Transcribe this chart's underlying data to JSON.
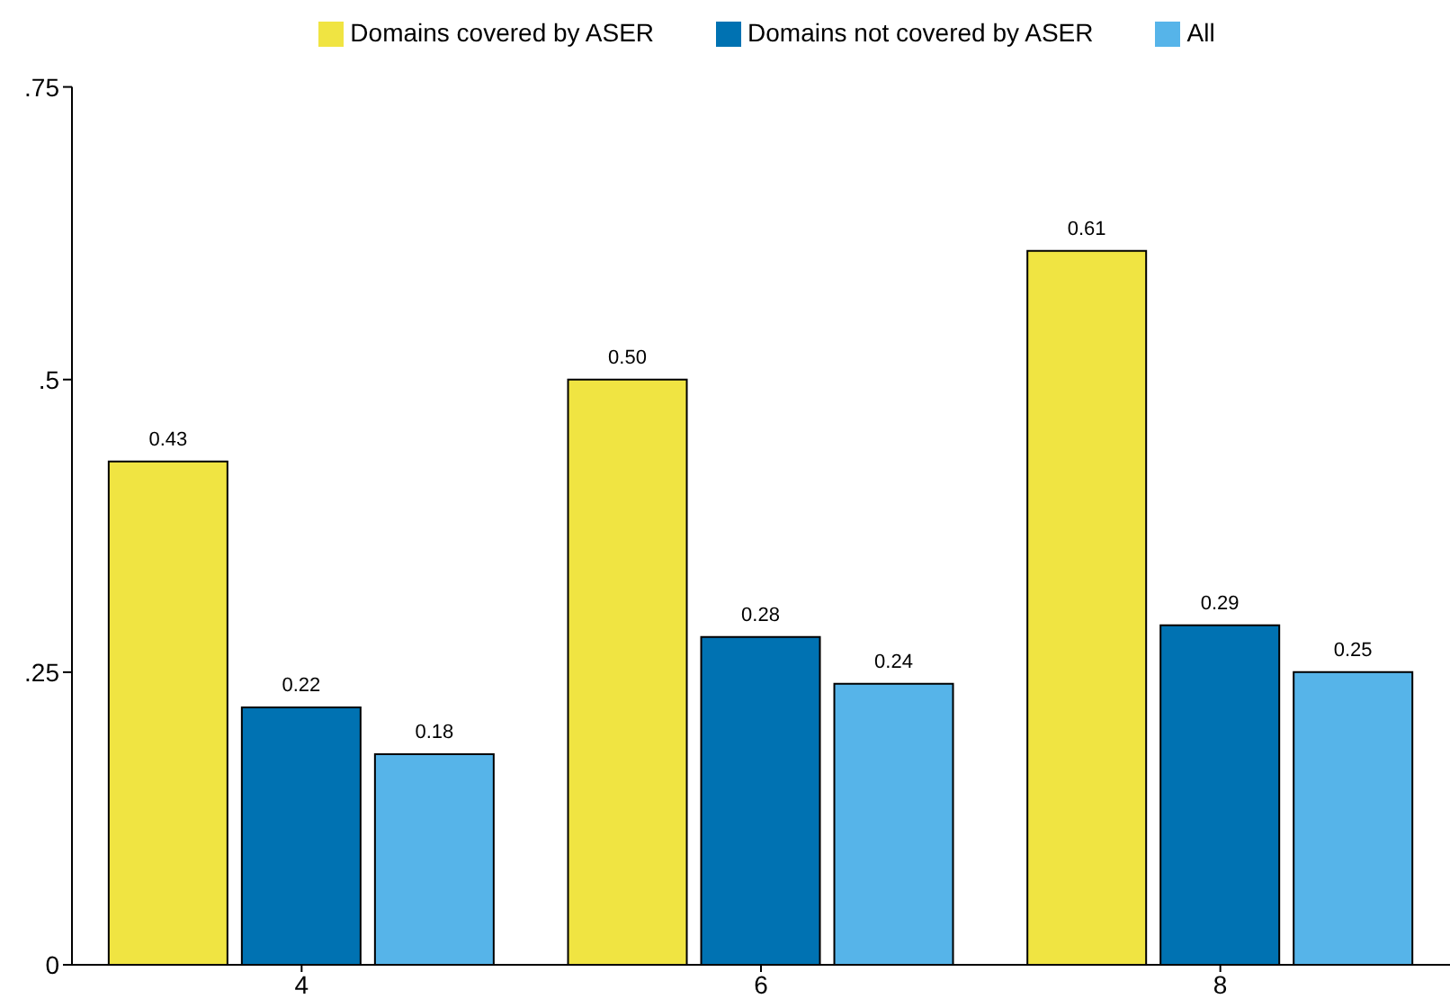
{
  "chart_data": {
    "type": "bar",
    "categories": [
      "4",
      "6",
      "8"
    ],
    "series": [
      {
        "name": "Domains covered by ASER",
        "color": "#f0e442",
        "values": [
          0.43,
          0.5,
          0.61
        ],
        "value_labels": [
          "0.43",
          "0.50",
          "0.61"
        ]
      },
      {
        "name": "Domains not covered by ASER",
        "color": "#0072b2",
        "values": [
          0.22,
          0.28,
          0.29
        ],
        "value_labels": [
          "0.22",
          "0.28",
          "0.29"
        ]
      },
      {
        "name": "All",
        "color": "#56b4e9",
        "values": [
          0.18,
          0.24,
          0.25
        ],
        "value_labels": [
          "0.18",
          "0.24",
          "0.25"
        ]
      }
    ],
    "ylim": [
      0,
      0.75
    ],
    "yticks": [
      0,
      {
        "value": 0.25,
        "label": ".25"
      },
      {
        "value": 0.5,
        "label": ".5"
      },
      {
        "value": 0.75,
        "label": ".75"
      }
    ],
    "grid": false,
    "legend": "top"
  }
}
